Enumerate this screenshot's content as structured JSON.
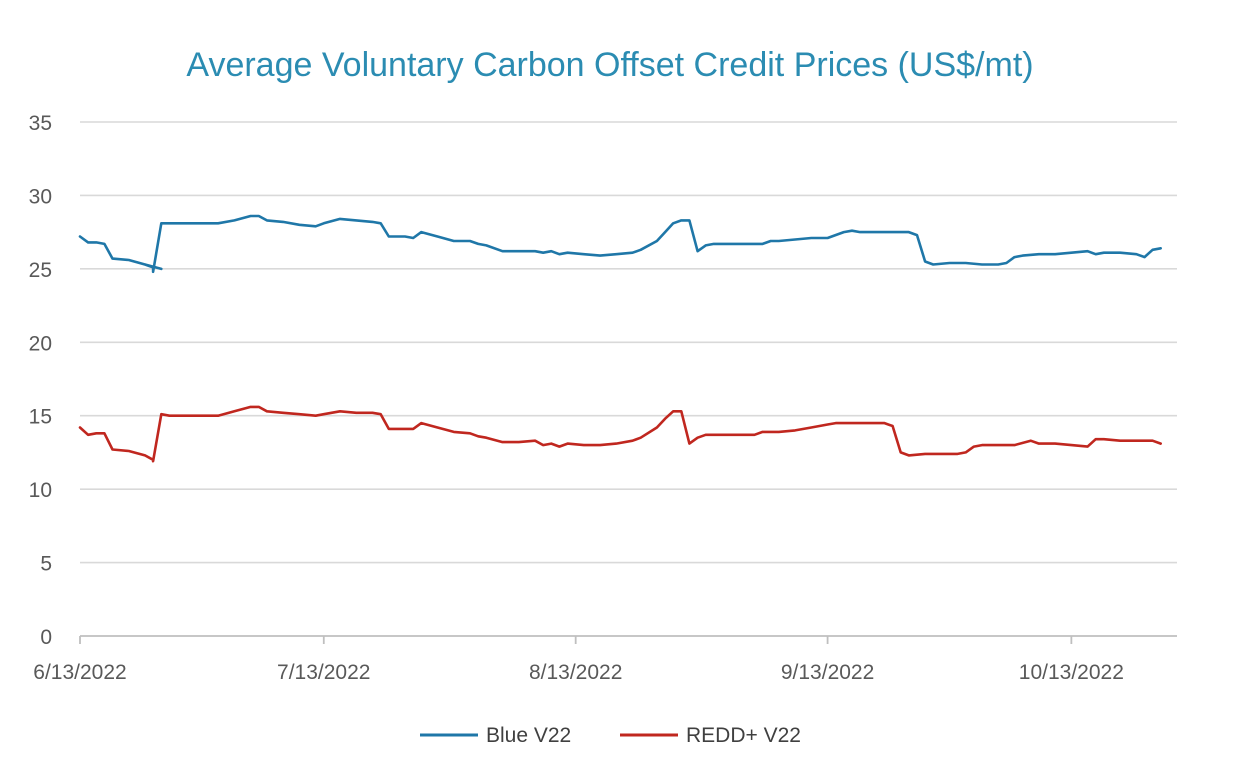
{
  "chart_data": {
    "type": "line",
    "title": "Average Voluntary Carbon Offset Credit Prices  (US$/mt)",
    "xlabel": "",
    "ylabel": "",
    "xlim": [
      "2022-06-13",
      "2022-10-26"
    ],
    "ylim": [
      0,
      35
    ],
    "yticks": [
      0,
      5,
      10,
      15,
      20,
      25,
      30,
      35
    ],
    "xticks": [
      {
        "date": "2022-06-13",
        "label": "6/13/2022"
      },
      {
        "date": "2022-07-13",
        "label": "7/13/2022"
      },
      {
        "date": "2022-08-13",
        "label": "8/13/2022"
      },
      {
        "date": "2022-09-13",
        "label": "9/13/2022"
      },
      {
        "date": "2022-10-13",
        "label": "10/13/2022"
      }
    ],
    "grid": true,
    "legend_position": "bottom",
    "series": [
      {
        "name": "Blue V22",
        "color": "#1f77a8",
        "points": [
          [
            "2022-06-13",
            27.2
          ],
          [
            "2022-06-14",
            26.8
          ],
          [
            "2022-06-15",
            26.8
          ],
          [
            "2022-06-16",
            26.7
          ],
          [
            "2022-06-17",
            25.7
          ],
          [
            "2022-06-19",
            25.6
          ],
          [
            "2022-06-21",
            25.3
          ],
          [
            "2022-06-23",
            25.0
          ],
          [
            "2022-06-21",
            25.3
          ],
          [
            "2022-06-22",
            25.1
          ],
          [
            "2022-06-22",
            24.8
          ],
          [
            "2022-06-22",
            24.8
          ],
          [
            "2022-06-23",
            28.1
          ],
          [
            "2022-06-24",
            28.1
          ],
          [
            "2022-06-26",
            28.1
          ],
          [
            "2022-06-28",
            28.1
          ],
          [
            "2022-06-30",
            28.1
          ],
          [
            "2022-07-02",
            28.3
          ],
          [
            "2022-07-04",
            28.6
          ],
          [
            "2022-07-05",
            28.6
          ],
          [
            "2022-07-06",
            28.3
          ],
          [
            "2022-07-08",
            28.2
          ],
          [
            "2022-07-10",
            28.0
          ],
          [
            "2022-07-12",
            27.9
          ],
          [
            "2022-07-13",
            28.1
          ],
          [
            "2022-07-15",
            28.4
          ],
          [
            "2022-07-17",
            28.3
          ],
          [
            "2022-07-19",
            28.2
          ],
          [
            "2022-07-20",
            28.1
          ],
          [
            "2022-07-21",
            27.2
          ],
          [
            "2022-07-23",
            27.2
          ],
          [
            "2022-07-24",
            27.1
          ],
          [
            "2022-07-25",
            27.5
          ],
          [
            "2022-07-27",
            27.2
          ],
          [
            "2022-07-29",
            26.9
          ],
          [
            "2022-07-31",
            26.9
          ],
          [
            "2022-08-01",
            26.7
          ],
          [
            "2022-08-02",
            26.6
          ],
          [
            "2022-08-04",
            26.2
          ],
          [
            "2022-08-06",
            26.2
          ],
          [
            "2022-08-08",
            26.2
          ],
          [
            "2022-08-09",
            26.1
          ],
          [
            "2022-08-10",
            26.2
          ],
          [
            "2022-08-11",
            26.0
          ],
          [
            "2022-08-12",
            26.1
          ],
          [
            "2022-08-14",
            26.0
          ],
          [
            "2022-08-16",
            25.9
          ],
          [
            "2022-08-18",
            26.0
          ],
          [
            "2022-08-20",
            26.1
          ],
          [
            "2022-08-21",
            26.3
          ],
          [
            "2022-08-23",
            26.9
          ],
          [
            "2022-08-24",
            27.5
          ],
          [
            "2022-08-25",
            28.1
          ],
          [
            "2022-08-26",
            28.3
          ],
          [
            "2022-08-27",
            28.3
          ],
          [
            "2022-08-28",
            26.2
          ],
          [
            "2022-08-29",
            26.6
          ],
          [
            "2022-08-30",
            26.7
          ],
          [
            "2022-09-01",
            26.7
          ],
          [
            "2022-09-03",
            26.7
          ],
          [
            "2022-09-05",
            26.7
          ],
          [
            "2022-09-06",
            26.9
          ],
          [
            "2022-09-07",
            26.9
          ],
          [
            "2022-09-09",
            27.0
          ],
          [
            "2022-09-11",
            27.1
          ],
          [
            "2022-09-13",
            27.1
          ],
          [
            "2022-09-15",
            27.5
          ],
          [
            "2022-09-16",
            27.6
          ],
          [
            "2022-09-17",
            27.5
          ],
          [
            "2022-09-19",
            27.5
          ],
          [
            "2022-09-21",
            27.5
          ],
          [
            "2022-09-23",
            27.5
          ],
          [
            "2022-09-24",
            27.3
          ],
          [
            "2022-09-25",
            25.5
          ],
          [
            "2022-09-26",
            25.3
          ],
          [
            "2022-09-28",
            25.4
          ],
          [
            "2022-09-30",
            25.4
          ],
          [
            "2022-10-02",
            25.3
          ],
          [
            "2022-10-04",
            25.3
          ],
          [
            "2022-10-05",
            25.4
          ],
          [
            "2022-10-06",
            25.8
          ],
          [
            "2022-10-07",
            25.9
          ],
          [
            "2022-10-09",
            26.0
          ],
          [
            "2022-10-11",
            26.0
          ],
          [
            "2022-10-13",
            26.1
          ],
          [
            "2022-10-15",
            26.2
          ],
          [
            "2022-10-16",
            26.0
          ],
          [
            "2022-10-17",
            26.1
          ],
          [
            "2022-10-19",
            26.1
          ],
          [
            "2022-10-21",
            26.0
          ],
          [
            "2022-10-22",
            25.8
          ],
          [
            "2022-10-23",
            26.3
          ],
          [
            "2022-10-24",
            26.4
          ]
        ]
      },
      {
        "name": "REDD+ V22",
        "color": "#c0271f",
        "points": [
          [
            "2022-06-13",
            14.2
          ],
          [
            "2022-06-14",
            13.7
          ],
          [
            "2022-06-15",
            13.8
          ],
          [
            "2022-06-16",
            13.8
          ],
          [
            "2022-06-17",
            12.7
          ],
          [
            "2022-06-19",
            12.6
          ],
          [
            "2022-06-21",
            12.3
          ],
          [
            "2022-06-22",
            12.0
          ],
          [
            "2022-06-22",
            11.9
          ],
          [
            "2022-06-23",
            15.1
          ],
          [
            "2022-06-24",
            15.0
          ],
          [
            "2022-06-26",
            15.0
          ],
          [
            "2022-06-28",
            15.0
          ],
          [
            "2022-06-30",
            15.0
          ],
          [
            "2022-07-02",
            15.3
          ],
          [
            "2022-07-04",
            15.6
          ],
          [
            "2022-07-05",
            15.6
          ],
          [
            "2022-07-06",
            15.3
          ],
          [
            "2022-07-08",
            15.2
          ],
          [
            "2022-07-10",
            15.1
          ],
          [
            "2022-07-12",
            15.0
          ],
          [
            "2022-07-13",
            15.1
          ],
          [
            "2022-07-15",
            15.3
          ],
          [
            "2022-07-17",
            15.2
          ],
          [
            "2022-07-19",
            15.2
          ],
          [
            "2022-07-20",
            15.1
          ],
          [
            "2022-07-21",
            14.1
          ],
          [
            "2022-07-23",
            14.1
          ],
          [
            "2022-07-24",
            14.1
          ],
          [
            "2022-07-25",
            14.5
          ],
          [
            "2022-07-27",
            14.2
          ],
          [
            "2022-07-29",
            13.9
          ],
          [
            "2022-07-31",
            13.8
          ],
          [
            "2022-08-01",
            13.6
          ],
          [
            "2022-08-02",
            13.5
          ],
          [
            "2022-08-04",
            13.2
          ],
          [
            "2022-08-06",
            13.2
          ],
          [
            "2022-08-08",
            13.3
          ],
          [
            "2022-08-09",
            13.0
          ],
          [
            "2022-08-10",
            13.1
          ],
          [
            "2022-08-11",
            12.9
          ],
          [
            "2022-08-12",
            13.1
          ],
          [
            "2022-08-14",
            13.0
          ],
          [
            "2022-08-16",
            13.0
          ],
          [
            "2022-08-18",
            13.1
          ],
          [
            "2022-08-20",
            13.3
          ],
          [
            "2022-08-21",
            13.5
          ],
          [
            "2022-08-23",
            14.2
          ],
          [
            "2022-08-24",
            14.8
          ],
          [
            "2022-08-25",
            15.3
          ],
          [
            "2022-08-26",
            15.3
          ],
          [
            "2022-08-27",
            13.1
          ],
          [
            "2022-08-28",
            13.5
          ],
          [
            "2022-08-29",
            13.7
          ],
          [
            "2022-08-31",
            13.7
          ],
          [
            "2022-09-02",
            13.7
          ],
          [
            "2022-09-04",
            13.7
          ],
          [
            "2022-09-05",
            13.9
          ],
          [
            "2022-09-07",
            13.9
          ],
          [
            "2022-09-09",
            14.0
          ],
          [
            "2022-09-11",
            14.2
          ],
          [
            "2022-09-13",
            14.4
          ],
          [
            "2022-09-14",
            14.5
          ],
          [
            "2022-09-16",
            14.5
          ],
          [
            "2022-09-18",
            14.5
          ],
          [
            "2022-09-20",
            14.5
          ],
          [
            "2022-09-21",
            14.3
          ],
          [
            "2022-09-22",
            12.5
          ],
          [
            "2022-09-23",
            12.3
          ],
          [
            "2022-09-25",
            12.4
          ],
          [
            "2022-09-27",
            12.4
          ],
          [
            "2022-09-29",
            12.4
          ],
          [
            "2022-09-30",
            12.5
          ],
          [
            "2022-10-01",
            12.9
          ],
          [
            "2022-10-02",
            13.0
          ],
          [
            "2022-10-04",
            13.0
          ],
          [
            "2022-10-06",
            13.0
          ],
          [
            "2022-10-08",
            13.3
          ],
          [
            "2022-10-09",
            13.1
          ],
          [
            "2022-10-11",
            13.1
          ],
          [
            "2022-10-13",
            13.0
          ],
          [
            "2022-10-15",
            12.9
          ],
          [
            "2022-10-16",
            13.4
          ],
          [
            "2022-10-17",
            13.4
          ],
          [
            "2022-10-19",
            13.3
          ],
          [
            "2022-10-21",
            13.3
          ],
          [
            "2022-10-23",
            13.3
          ],
          [
            "2022-10-24",
            13.1
          ]
        ]
      }
    ]
  }
}
